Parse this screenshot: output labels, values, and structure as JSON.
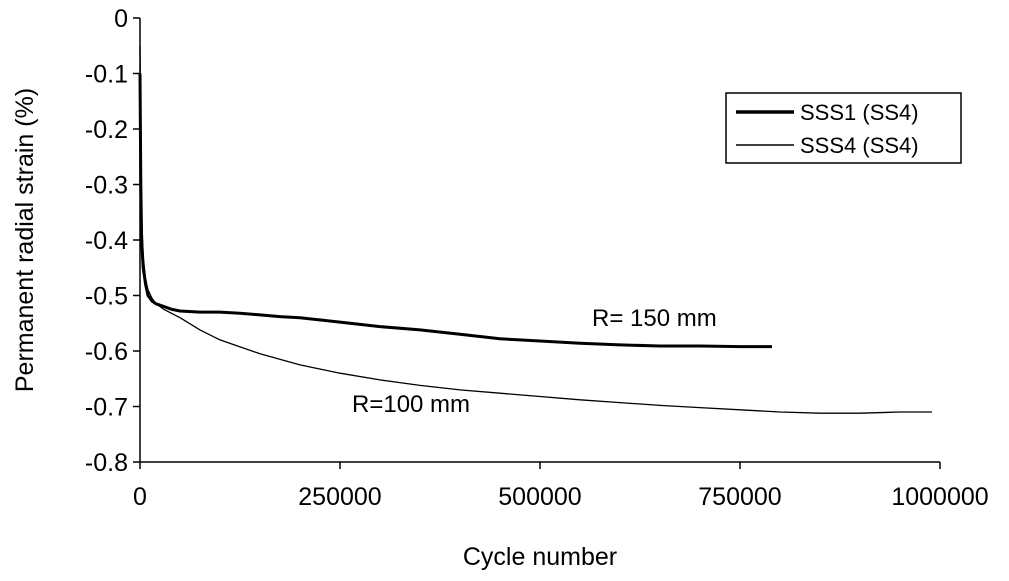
{
  "chart_data": {
    "type": "line",
    "title": "",
    "xlabel": "Cycle number",
    "ylabel": "Permanent radial strain (%)",
    "xlim": [
      0,
      1000000
    ],
    "ylim": [
      -0.8,
      0
    ],
    "x_ticks": [
      0,
      250000,
      500000,
      750000,
      1000000
    ],
    "x_tick_labels": [
      "0",
      "250000",
      "500000",
      "750000",
      "1000000"
    ],
    "y_ticks": [
      0,
      -0.1,
      -0.2,
      -0.3,
      -0.4,
      -0.5,
      -0.6,
      -0.7,
      -0.8
    ],
    "y_tick_labels": [
      "0",
      "-0.1",
      "-0.2",
      "-0.3",
      "-0.4",
      "-0.5",
      "-0.6",
      "-0.7",
      "-0.8"
    ],
    "grid": false,
    "legend_position": "top-right",
    "series": [
      {
        "name": "SSS1 (SS4)",
        "color": "#000000",
        "line_style": "thick",
        "x": [
          0,
          1000,
          2000,
          4000,
          7000,
          10000,
          15000,
          20000,
          30000,
          40000,
          50000,
          75000,
          100000,
          125000,
          150000,
          175000,
          200000,
          250000,
          300000,
          350000,
          400000,
          450000,
          500000,
          550000,
          600000,
          650000,
          700000,
          750000,
          790000
        ],
        "y": [
          -0.1,
          -0.3,
          -0.4,
          -0.45,
          -0.48,
          -0.5,
          -0.51,
          -0.515,
          -0.52,
          -0.525,
          -0.528,
          -0.53,
          -0.53,
          -0.532,
          -0.535,
          -0.538,
          -0.54,
          -0.548,
          -0.556,
          -0.562,
          -0.57,
          -0.578,
          -0.582,
          -0.586,
          -0.589,
          -0.591,
          -0.591,
          -0.592,
          -0.592
        ]
      },
      {
        "name": "SSS4 (SS4)",
        "color": "#000000",
        "line_style": "thin",
        "x": [
          0,
          1000,
          2000,
          4000,
          7000,
          10000,
          15000,
          20000,
          30000,
          50000,
          75000,
          100000,
          150000,
          200000,
          250000,
          300000,
          350000,
          400000,
          450000,
          500000,
          550000,
          600000,
          650000,
          700000,
          750000,
          800000,
          850000,
          900000,
          950000,
          990000
        ],
        "y": [
          -0.05,
          -0.2,
          -0.35,
          -0.43,
          -0.47,
          -0.49,
          -0.505,
          -0.515,
          -0.525,
          -0.54,
          -0.562,
          -0.58,
          -0.605,
          -0.625,
          -0.64,
          -0.652,
          -0.662,
          -0.67,
          -0.676,
          -0.682,
          -0.688,
          -0.693,
          -0.698,
          -0.702,
          -0.706,
          -0.71,
          -0.712,
          -0.712,
          -0.71,
          -0.71
        ]
      }
    ],
    "annotations": [
      {
        "text": "R= 150 mm",
        "x": 565000,
        "y": -0.555
      },
      {
        "text": "R=100 mm",
        "x": 265000,
        "y": -0.71
      }
    ]
  }
}
